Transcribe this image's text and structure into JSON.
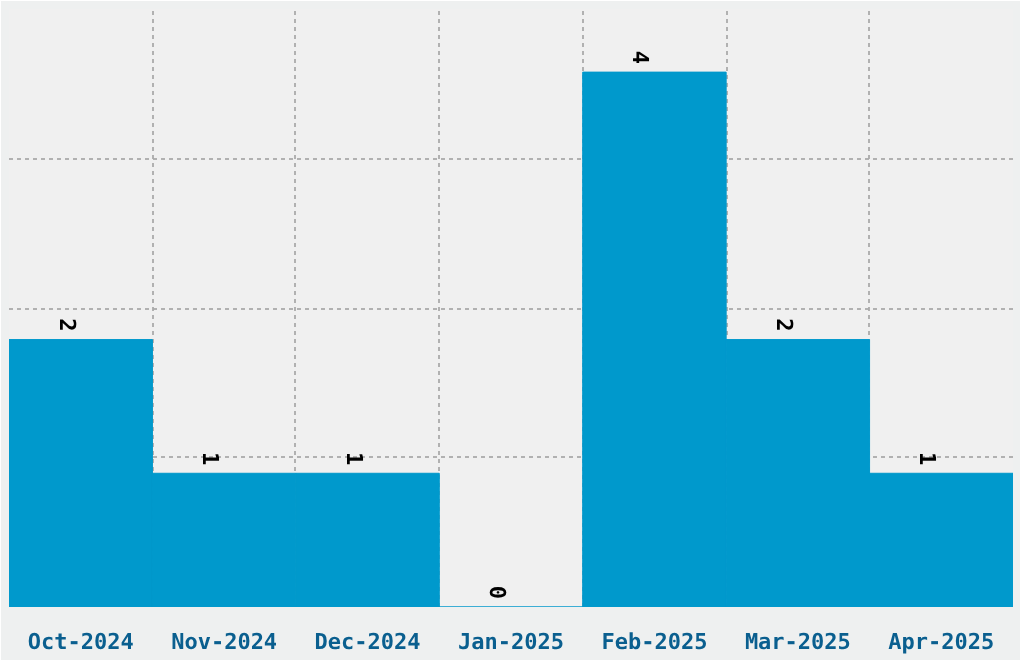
{
  "chart_data": {
    "type": "bar",
    "categories": [
      "Oct-2024",
      "Nov-2024",
      "Dec-2024",
      "Jan-2025",
      "Feb-2025",
      "Mar-2025",
      "Apr-2025"
    ],
    "values": [
      2,
      1,
      1,
      0,
      4,
      2,
      1
    ],
    "color": "#0099cc",
    "data_labels": true,
    "grid": true
  }
}
